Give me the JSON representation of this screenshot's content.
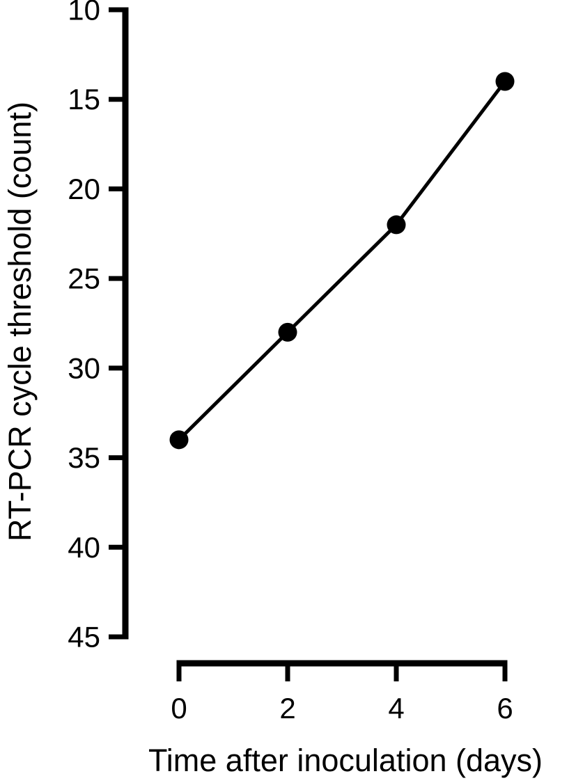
{
  "chart_data": {
    "type": "line",
    "title": "",
    "xlabel": "Time after inoculation (days)",
    "ylabel": "RT-PCR cycle threshold (count)",
    "x": [
      0,
      2,
      4,
      6
    ],
    "series": [
      {
        "name": "RT-PCR cycle threshold",
        "values": [
          34,
          28,
          22,
          14
        ]
      }
    ],
    "x_ticks": [
      0,
      2,
      4,
      6
    ],
    "y_ticks": [
      10,
      15,
      20,
      25,
      30,
      35,
      40,
      45
    ],
    "xlim": [
      0,
      6
    ],
    "ylim": [
      10,
      45
    ],
    "y_axis_reversed": true,
    "grid": false,
    "legend_position": "none",
    "marker": "filled-circle",
    "line_color": "#000000",
    "marker_color": "#000000",
    "axis_color": "#000000",
    "text_color": "#000000",
    "background_color": "#ffffff"
  }
}
